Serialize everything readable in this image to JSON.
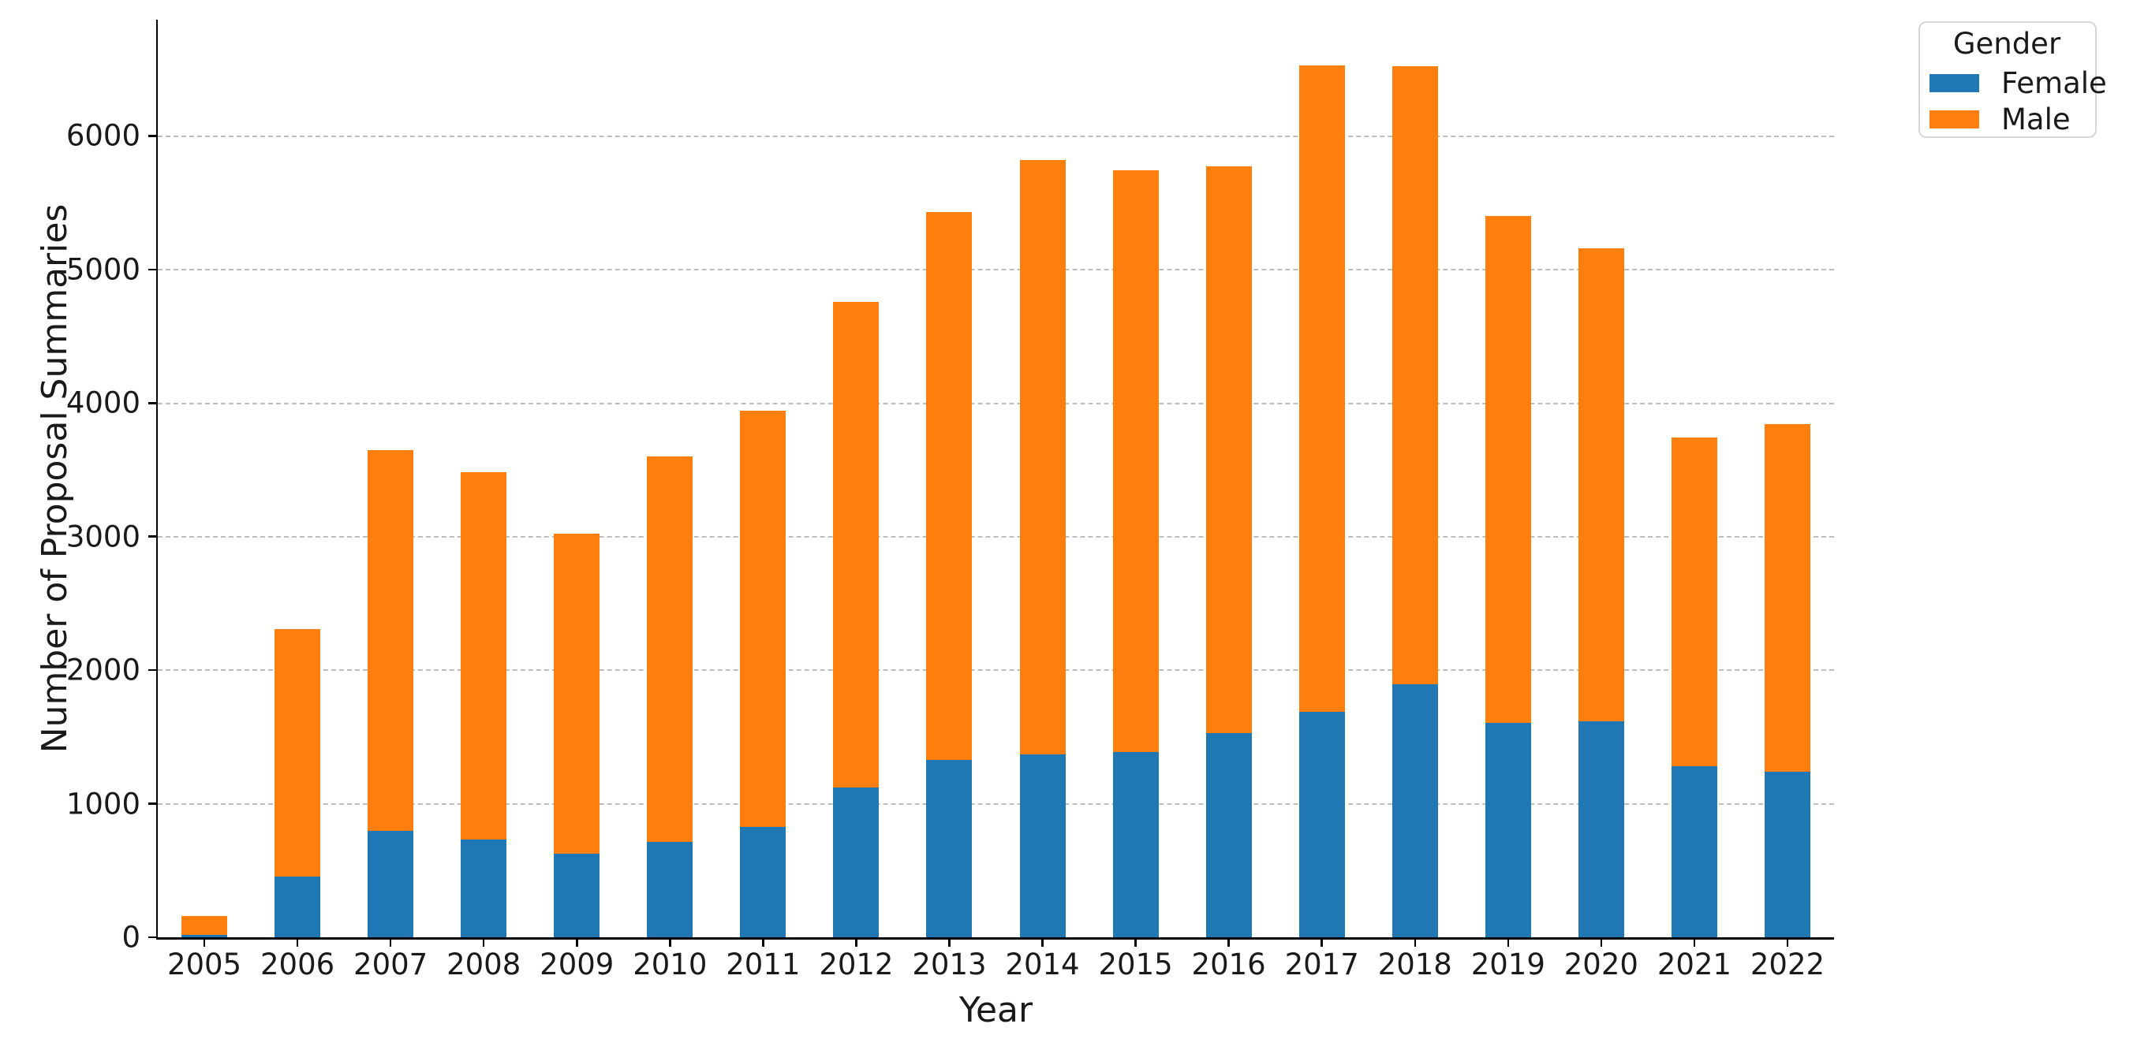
{
  "figure": {
    "background": "#ffffff"
  },
  "chart_data": {
    "type": "bar",
    "stacked": true,
    "title": "",
    "xlabel": "Year",
    "ylabel": "Number of Proposal Summaries",
    "categories": [
      "2005",
      "2006",
      "2007",
      "2008",
      "2009",
      "2010",
      "2011",
      "2012",
      "2013",
      "2014",
      "2015",
      "2016",
      "2017",
      "2018",
      "2019",
      "2020",
      "2021",
      "2022"
    ],
    "series": [
      {
        "name": "Female",
        "color": "#1f77b4",
        "values": [
          20,
          455,
          795,
          730,
          625,
          715,
          825,
          1120,
          1330,
          1370,
          1390,
          1530,
          1690,
          1895,
          1605,
          1620,
          1280,
          1240
        ]
      },
      {
        "name": "Male",
        "color": "#ff7f0e",
        "values": [
          140,
          1855,
          2855,
          2750,
          2395,
          2885,
          3115,
          3640,
          4100,
          4450,
          4350,
          4240,
          4840,
          4625,
          3795,
          3540,
          2460,
          2600
        ]
      }
    ],
    "ylim": [
      0,
      6870
    ],
    "yticks": [
      0,
      1000,
      2000,
      3000,
      4000,
      5000,
      6000
    ],
    "grid": "horizontal-dashed",
    "legend_position": "upper-right-outside"
  },
  "legend": {
    "title": "Gender",
    "items": [
      {
        "label": "Female",
        "color": "#1f77b4"
      },
      {
        "label": "Male",
        "color": "#ff7f0e"
      }
    ]
  },
  "colors": {
    "grid": "#bdbdbd",
    "spine": "#000000",
    "tick_text": "#1a1a1a"
  }
}
